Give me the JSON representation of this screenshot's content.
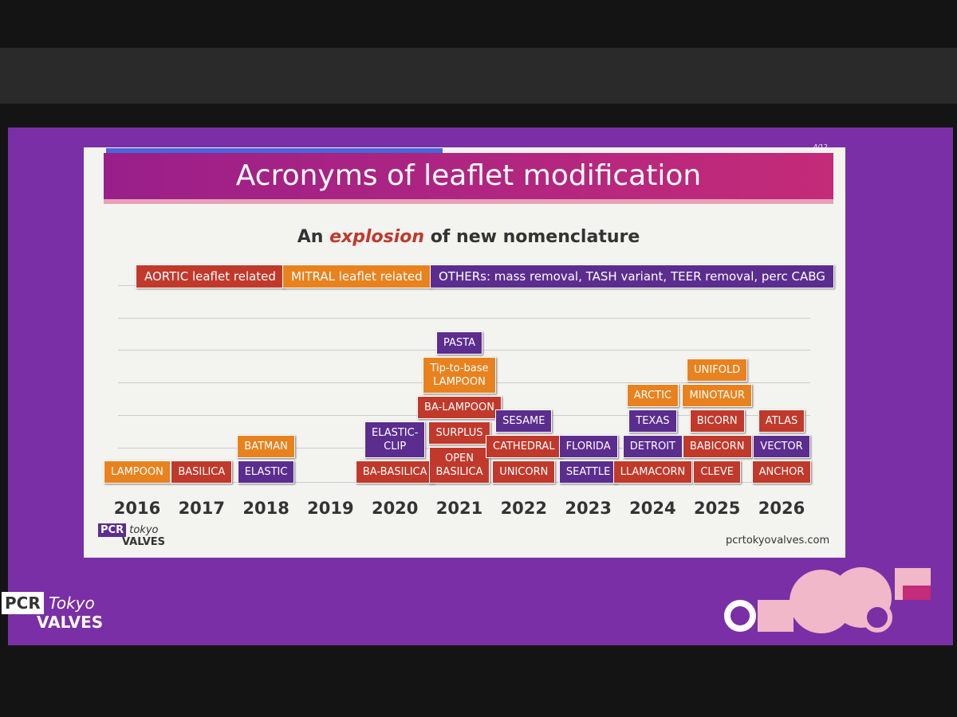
{
  "slide": {
    "counter": "4/12",
    "title": "Acronyms of leaflet modification",
    "subtitle": [
      "An ",
      "explosion",
      " of new nomenclature"
    ],
    "legend": [
      {
        "text": "AORTIC leaflet related",
        "color": "#c0392b"
      },
      {
        "text": "MITRAL leaflet related",
        "color": "#e8821e"
      },
      {
        "text": "OTHERs: mass removal, TASH variant, TEER removal, perc CABG",
        "color": "#5b2d8e"
      }
    ],
    "years": [
      {
        "label": "2016",
        "items": [
          {
            "text": "LAMPOON",
            "color": "#e8821e"
          }
        ]
      },
      {
        "label": "2017",
        "items": [
          {
            "text": "BASILICA",
            "color": "#c0392b"
          }
        ]
      },
      {
        "label": "2018",
        "items": [
          {
            "text": "ELASTIC",
            "color": "#5b2d8e"
          },
          {
            "text": "BATMAN",
            "color": "#e8821e"
          }
        ]
      },
      {
        "label": "2019",
        "items": []
      },
      {
        "label": "2020",
        "items": [
          {
            "text": "BA-BASILICA",
            "color": "#c0392b"
          },
          {
            "text": "ELASTIC-\nCLIP",
            "color": "#5b2d8e"
          }
        ]
      },
      {
        "label": "2021",
        "items": [
          {
            "text": "OPEN\nBASILICA",
            "color": "#c0392b"
          },
          {
            "text": "SURPLUS",
            "color": "#c0392b"
          },
          {
            "text": "BA-LAMPOON",
            "color": "#c0392b"
          },
          {
            "text": "Tip-to-base\nLAMPOON",
            "color": "#e8821e"
          },
          {
            "text": "PASTA",
            "color": "#5b2d8e"
          }
        ]
      },
      {
        "label": "2022",
        "items": [
          {
            "text": "UNICORN",
            "color": "#c0392b"
          },
          {
            "text": "CATHEDRAL",
            "color": "#c0392b"
          },
          {
            "text": "SESAME",
            "color": "#5b2d8e"
          }
        ]
      },
      {
        "label": "2023",
        "items": [
          {
            "text": "SEATTLE",
            "color": "#5b2d8e"
          },
          {
            "text": "FLORIDA",
            "color": "#5b2d8e"
          }
        ]
      },
      {
        "label": "2024",
        "items": [
          {
            "text": "LLAMACORN",
            "color": "#c0392b"
          },
          {
            "text": "DETROIT",
            "color": "#5b2d8e"
          },
          {
            "text": "TEXAS",
            "color": "#5b2d8e"
          },
          {
            "text": "ARCTIC",
            "color": "#e8821e"
          }
        ]
      },
      {
        "label": "2025",
        "items": [
          {
            "text": "CLEVE",
            "color": "#c0392b"
          },
          {
            "text": "BABICORN",
            "color": "#c0392b"
          },
          {
            "text": "BICORN",
            "color": "#c0392b"
          },
          {
            "text": "MINOTAUR",
            "color": "#e8821e"
          },
          {
            "text": "UNIFOLD",
            "color": "#e8821e"
          }
        ]
      },
      {
        "label": "2026",
        "items": [
          {
            "text": "ANCHOR",
            "color": "#c0392b"
          },
          {
            "text": "VECTOR",
            "color": "#5b2d8e"
          },
          {
            "text": "ATLAS",
            "color": "#c0392b"
          }
        ]
      }
    ],
    "logo": {
      "mark": "PCR",
      "city": "tokyo",
      "name": "VALVES"
    },
    "url": "pcrtokyovalves.com"
  },
  "screen_logo": {
    "mark": "PCR",
    "city": "Tokyo",
    "name": "VALVES"
  }
}
